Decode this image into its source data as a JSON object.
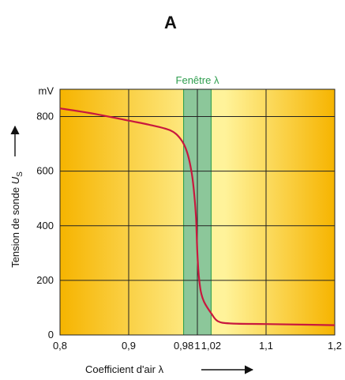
{
  "panel_label": "A",
  "chart_data": {
    "type": "line",
    "title": "",
    "xlabel": "Coefficient d'air λ",
    "ylabel_prefix": "Tension de sonde ",
    "ylabel_symbol": "U",
    "ylabel_subscript": "S",
    "y_unit": "mV",
    "xlim": [
      0.8,
      1.2
    ],
    "ylim": [
      0,
      900
    ],
    "x_ticks": [
      {
        "value": 0.8,
        "label": "0,8"
      },
      {
        "value": 0.9,
        "label": "0,9"
      },
      {
        "value": 0.98,
        "label": "0,98"
      },
      {
        "value": 1.0,
        "label": "1"
      },
      {
        "value": 1.02,
        "label": "1,02"
      },
      {
        "value": 1.1,
        "label": "1,1"
      },
      {
        "value": 1.2,
        "label": "1,2"
      }
    ],
    "x_gridlines": [
      0.9,
      1.0,
      1.1
    ],
    "y_ticks": [
      {
        "value": 0,
        "label": "0"
      },
      {
        "value": 200,
        "label": "200"
      },
      {
        "value": 400,
        "label": "400"
      },
      {
        "value": 600,
        "label": "600"
      },
      {
        "value": 800,
        "label": "800"
      }
    ],
    "grid": true,
    "window": {
      "label": "Fenêtre λ",
      "x_range": [
        0.98,
        1.02
      ]
    },
    "series": [
      {
        "x": [
          0.8,
          0.85,
          0.9,
          0.93,
          0.96,
          0.975,
          0.985,
          0.992,
          0.996,
          0.998,
          0.999,
          1.0,
          1.002,
          1.005,
          1.01,
          1.02,
          1.03,
          1.05,
          1.1,
          1.15,
          1.2
        ],
        "y": [
          830,
          810,
          785,
          770,
          750,
          720,
          670,
          590,
          500,
          430,
          370,
          300,
          220,
          160,
          120,
          80,
          50,
          42,
          40,
          38,
          36
        ]
      }
    ],
    "colors": {
      "background_outer": "#f6b400",
      "background_inner": "#fff39a",
      "window_fill": "#8cc79a",
      "window_border": "#1e9a4a",
      "curve": "#c8183e",
      "grid": "#222222"
    }
  }
}
